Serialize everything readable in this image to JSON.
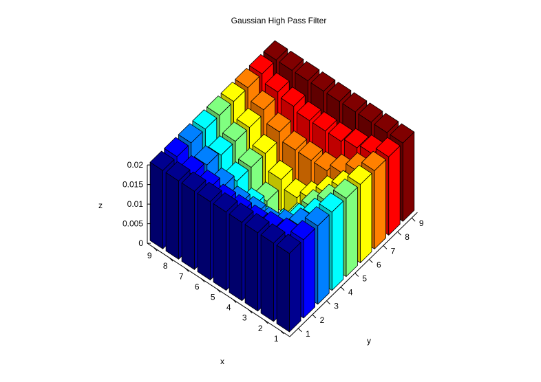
{
  "chart_data": {
    "type": "bar3",
    "title": "Gaussian High Pass Filter",
    "xlabel": "x",
    "ylabel": "y",
    "zlabel": "z",
    "x_ticks": [
      "1",
      "2",
      "3",
      "4",
      "5",
      "6",
      "7",
      "8",
      "9"
    ],
    "y_ticks": [
      "1",
      "2",
      "3",
      "4",
      "5",
      "6",
      "7",
      "8",
      "9"
    ],
    "z_ticks": [
      "0",
      "0.005",
      "0.01",
      "0.015",
      "0.02"
    ],
    "zlim": [
      0,
      0.02
    ],
    "grid": false,
    "colormap": "jet",
    "colors": [
      "#00008f",
      "#0000ff",
      "#0080ff",
      "#00ffff",
      "#80ff80",
      "#ffff00",
      "#ff8000",
      "#ff0000",
      "#800000"
    ],
    "values": [
      [
        0.02,
        0.02,
        0.02,
        0.02,
        0.02,
        0.02,
        0.02,
        0.02,
        0.02
      ],
      [
        0.02,
        0.018,
        0.017,
        0.016,
        0.016,
        0.016,
        0.017,
        0.018,
        0.02
      ],
      [
        0.02,
        0.017,
        0.014,
        0.012,
        0.012,
        0.012,
        0.014,
        0.017,
        0.02
      ],
      [
        0.02,
        0.016,
        0.012,
        0.008,
        0.006,
        0.008,
        0.012,
        0.016,
        0.02
      ],
      [
        0.02,
        0.016,
        0.012,
        0.006,
        0.0,
        0.006,
        0.012,
        0.016,
        0.02
      ],
      [
        0.02,
        0.016,
        0.012,
        0.008,
        0.006,
        0.008,
        0.012,
        0.016,
        0.02
      ],
      [
        0.02,
        0.017,
        0.014,
        0.012,
        0.012,
        0.012,
        0.014,
        0.017,
        0.02
      ],
      [
        0.02,
        0.018,
        0.017,
        0.016,
        0.016,
        0.016,
        0.017,
        0.018,
        0.02
      ],
      [
        0.02,
        0.02,
        0.02,
        0.02,
        0.02,
        0.02,
        0.02,
        0.02,
        0.02
      ]
    ]
  }
}
